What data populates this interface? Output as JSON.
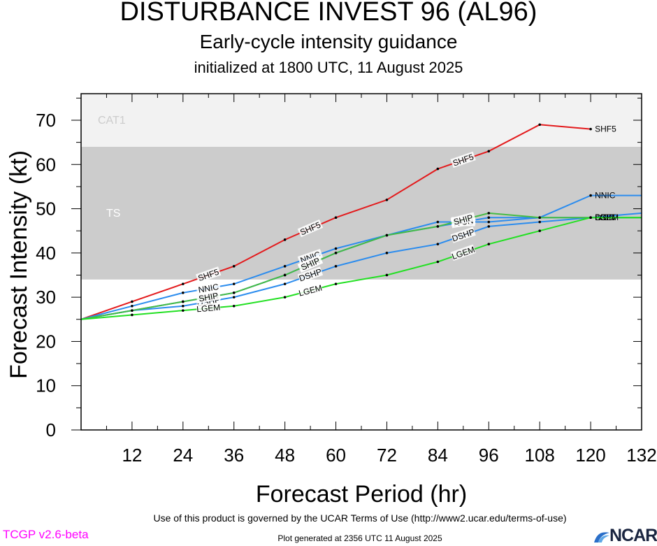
{
  "header": {
    "title": "DISTURBANCE INVEST 96 (AL96)",
    "subtitle": "Early-cycle intensity guidance",
    "init": "initialized at 1800 UTC, 11 August 2025"
  },
  "footer": {
    "terms": "Use of this product is governed by the UCAR Terms of Use (http://www2.ucar.edu/terms-of-use)",
    "version": "TCGP v2.6-beta",
    "generated": "Plot generated at 2356 UTC   11 August 2025",
    "logo": "NCAR"
  },
  "colors": {
    "SHF5": "#e31a1c",
    "NNIC": "#2b8cee",
    "DSHP": "#2b8cee",
    "IVCN": "#2b8cee",
    "LGEM": "#22e022",
    "SHIP": "#44bb44",
    "band_ts": "#cccccc",
    "band_cat1": "#f2f2f2",
    "version_text": "#ff00ff"
  },
  "chart_data": {
    "type": "line",
    "xlabel": "Forecast Period (hr)",
    "ylabel": "Forecast Intensity (kt)",
    "xlim": [
      0,
      132
    ],
    "ylim": [
      0,
      76
    ],
    "xticks": [
      12,
      24,
      36,
      48,
      60,
      72,
      84,
      96,
      108,
      120,
      132
    ],
    "yticks": [
      0,
      10,
      20,
      30,
      40,
      50,
      60,
      70
    ],
    "bands": [
      {
        "label": "TS",
        "from": 34,
        "to": 64
      },
      {
        "label": "CAT1",
        "from": 64,
        "to": 76
      }
    ],
    "series": [
      {
        "name": "SHF5",
        "x": [
          0,
          12,
          24,
          36,
          48,
          60,
          72,
          84,
          96,
          108,
          120
        ],
        "y": [
          25,
          29,
          33,
          37,
          43,
          48,
          52,
          59,
          63,
          69,
          68
        ]
      },
      {
        "name": "NNIC",
        "x": [
          0,
          12,
          24,
          36,
          48,
          60,
          72,
          84,
          96,
          108,
          120,
          132
        ],
        "y": [
          25,
          28,
          31,
          33,
          37,
          41,
          44,
          47,
          47,
          48,
          53,
          53
        ]
      },
      {
        "name": "DSHP",
        "x": [
          0,
          12,
          24,
          36,
          48,
          60,
          72,
          84,
          96,
          108,
          120,
          132
        ],
        "y": [
          25,
          27,
          28,
          30,
          33,
          37,
          40,
          42,
          46,
          47,
          48,
          48
        ]
      },
      {
        "name": "IVCN",
        "x": [
          0,
          12,
          24,
          36,
          48,
          60,
          72,
          84,
          96,
          108,
          120,
          132
        ],
        "y": [
          25,
          27,
          29,
          31,
          35,
          40,
          44,
          46,
          48,
          48,
          48,
          49
        ]
      },
      {
        "name": "SHIP",
        "x": [
          0,
          12,
          24,
          36,
          48,
          60,
          72,
          84,
          96,
          108,
          120,
          132
        ],
        "y": [
          25,
          27,
          29,
          31,
          35,
          40,
          44,
          46,
          49,
          48,
          48,
          48
        ]
      },
      {
        "name": "LGEM",
        "x": [
          0,
          12,
          24,
          36,
          48,
          60,
          72,
          84,
          96,
          108,
          120,
          132
        ],
        "y": [
          25,
          26,
          27,
          28,
          30,
          33,
          35,
          38,
          42,
          45,
          48,
          48
        ]
      }
    ]
  }
}
